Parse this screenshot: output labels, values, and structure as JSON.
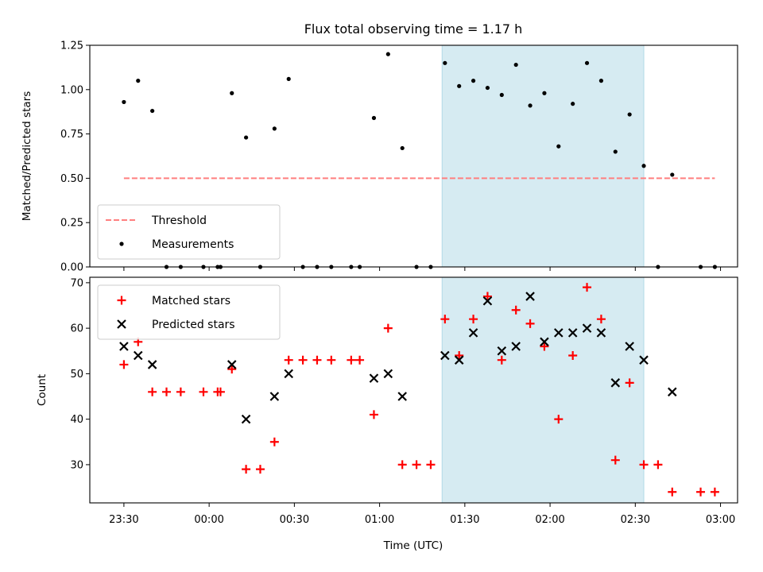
{
  "chart_data": [
    {
      "type": "scatter",
      "title": "Flux total observing time = 1.17 h",
      "xlabel": "",
      "ylabel": "Matched/Predicted stars",
      "xlim": [
        "23:18",
        "03:06"
      ],
      "ylim": [
        0,
        1.25
      ],
      "yticks": [
        "0.00",
        "0.25",
        "0.50",
        "0.75",
        "1.00",
        "1.25"
      ],
      "grid": false,
      "legend_position": "bottom-left",
      "shaded_span": {
        "start": "01:22",
        "end": "02:33",
        "color": "#add8e6"
      },
      "threshold": {
        "name": "Threshold",
        "value": 0.5,
        "x_start": "23:30",
        "x_end": "02:58",
        "color": "#ff7f7f",
        "style": "dashed"
      },
      "series": [
        {
          "name": "Measurements",
          "marker": "dot",
          "color": "#000000",
          "points": [
            [
              "23:30",
              0.93
            ],
            [
              "23:35",
              1.05
            ],
            [
              "23:40",
              0.88
            ],
            [
              "23:45",
              0.0
            ],
            [
              "23:50",
              0.0
            ],
            [
              "23:58",
              0.0
            ],
            [
              "00:03",
              0.0
            ],
            [
              "00:04",
              0.0
            ],
            [
              "00:08",
              0.98
            ],
            [
              "00:13",
              0.73
            ],
            [
              "00:18",
              0.0
            ],
            [
              "00:23",
              0.78
            ],
            [
              "00:28",
              1.06
            ],
            [
              "00:33",
              0.0
            ],
            [
              "00:38",
              0.0
            ],
            [
              "00:43",
              0.0
            ],
            [
              "00:50",
              0.0
            ],
            [
              "00:53",
              0.0
            ],
            [
              "00:58",
              0.84
            ],
            [
              "01:03",
              1.2
            ],
            [
              "01:08",
              0.67
            ],
            [
              "01:13",
              0.0
            ],
            [
              "01:18",
              0.0
            ],
            [
              "01:23",
              1.15
            ],
            [
              "01:28",
              1.02
            ],
            [
              "01:33",
              1.05
            ],
            [
              "01:38",
              1.01
            ],
            [
              "01:43",
              0.97
            ],
            [
              "01:48",
              1.14
            ],
            [
              "01:53",
              0.91
            ],
            [
              "01:58",
              0.98
            ],
            [
              "02:03",
              0.68
            ],
            [
              "02:08",
              0.92
            ],
            [
              "02:13",
              1.15
            ],
            [
              "02:18",
              1.05
            ],
            [
              "02:23",
              0.65
            ],
            [
              "02:28",
              0.86
            ],
            [
              "02:33",
              0.57
            ],
            [
              "02:38",
              0.0
            ],
            [
              "02:43",
              0.52
            ],
            [
              "02:53",
              0.0
            ],
            [
              "02:58",
              0.0
            ]
          ]
        }
      ]
    },
    {
      "type": "scatter",
      "title": "",
      "xlabel": "Time (UTC)",
      "ylabel": "Count",
      "xlim": [
        "23:18",
        "03:06"
      ],
      "ylim": [
        21.6,
        71.2
      ],
      "yticks": [
        "30",
        "40",
        "50",
        "60",
        "70"
      ],
      "xticks": [
        "23:30",
        "00:00",
        "00:30",
        "01:00",
        "01:30",
        "02:00",
        "02:30",
        "03:00"
      ],
      "grid": false,
      "legend_position": "top-left",
      "shaded_span": {
        "start": "01:22",
        "end": "02:33",
        "color": "#add8e6"
      },
      "series": [
        {
          "name": "Matched stars",
          "marker": "plus",
          "color": "#ff0000",
          "points": [
            [
              "23:30",
              52
            ],
            [
              "23:35",
              57
            ],
            [
              "23:40",
              46
            ],
            [
              "23:45",
              46
            ],
            [
              "23:50",
              46
            ],
            [
              "23:58",
              46
            ],
            [
              "00:03",
              46
            ],
            [
              "00:04",
              46
            ],
            [
              "00:08",
              51
            ],
            [
              "00:13",
              29
            ],
            [
              "00:18",
              29
            ],
            [
              "00:23",
              35
            ],
            [
              "00:28",
              53
            ],
            [
              "00:33",
              53
            ],
            [
              "00:38",
              53
            ],
            [
              "00:43",
              53
            ],
            [
              "00:50",
              53
            ],
            [
              "00:53",
              53
            ],
            [
              "00:58",
              41
            ],
            [
              "01:03",
              60
            ],
            [
              "01:08",
              30
            ],
            [
              "01:13",
              30
            ],
            [
              "01:18",
              30
            ],
            [
              "01:23",
              62
            ],
            [
              "01:28",
              54
            ],
            [
              "01:33",
              62
            ],
            [
              "01:38",
              67
            ],
            [
              "01:43",
              53
            ],
            [
              "01:48",
              64
            ],
            [
              "01:53",
              61
            ],
            [
              "01:58",
              56
            ],
            [
              "02:03",
              40
            ],
            [
              "02:08",
              54
            ],
            [
              "02:13",
              69
            ],
            [
              "02:18",
              62
            ],
            [
              "02:23",
              31
            ],
            [
              "02:28",
              48
            ],
            [
              "02:33",
              30
            ],
            [
              "02:38",
              30
            ],
            [
              "02:43",
              24
            ],
            [
              "02:53",
              24
            ],
            [
              "02:58",
              24
            ]
          ]
        },
        {
          "name": "Predicted stars",
          "marker": "x",
          "color": "#000000",
          "points": [
            [
              "23:30",
              56
            ],
            [
              "23:35",
              54
            ],
            [
              "23:40",
              52
            ],
            [
              "00:08",
              52
            ],
            [
              "00:13",
              40
            ],
            [
              "00:23",
              45
            ],
            [
              "00:28",
              50
            ],
            [
              "00:58",
              49
            ],
            [
              "01:03",
              50
            ],
            [
              "01:08",
              45
            ],
            [
              "01:23",
              54
            ],
            [
              "01:28",
              53
            ],
            [
              "01:33",
              59
            ],
            [
              "01:38",
              66
            ],
            [
              "01:43",
              55
            ],
            [
              "01:48",
              56
            ],
            [
              "01:53",
              67
            ],
            [
              "01:58",
              57
            ],
            [
              "02:03",
              59
            ],
            [
              "02:08",
              59
            ],
            [
              "02:13",
              60
            ],
            [
              "02:18",
              59
            ],
            [
              "02:23",
              48
            ],
            [
              "02:28",
              56
            ],
            [
              "02:33",
              53
            ],
            [
              "02:43",
              46
            ]
          ]
        }
      ]
    }
  ]
}
